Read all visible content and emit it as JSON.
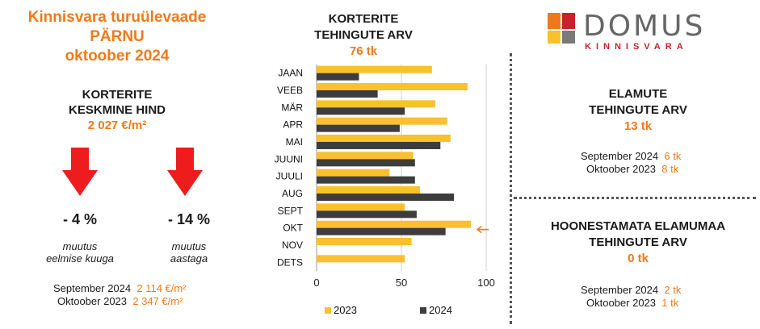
{
  "left": {
    "title_line1": "Kinnisvara turuülevaade",
    "title_line2": "PÄRNU",
    "title_line3": "oktoober 2024",
    "avg_price_label_line1": "KORTERITE",
    "avg_price_label_line2": "KESKMINE HIND",
    "avg_price_value": "2 027 €/m²",
    "change_month": {
      "value": "- 4 %",
      "note_line1": "muutus",
      "note_line2": "eelmise kuuga"
    },
    "change_year": {
      "value": "- 14 %",
      "note_line1": "muutus",
      "note_line2": "aastaga"
    },
    "comparisons": [
      {
        "label": "September 2024",
        "value": "2 114 €/m²"
      },
      {
        "label": "Oktoober 2023",
        "value": "2 347 €/m²"
      }
    ],
    "arrow_color": "#ee1c1c"
  },
  "chart_header": {
    "title_line1": "KORTERITE",
    "title_line2": "TEHINGUTE ARV",
    "total": "76 tk"
  },
  "chart_data": {
    "type": "bar",
    "orientation": "horizontal",
    "categories": [
      "JAAN",
      "VEEB",
      "MÄR",
      "APR",
      "MAI",
      "JUUNI",
      "JUULI",
      "AUG",
      "SEPT",
      "OKT",
      "NOV",
      "DETS"
    ],
    "series": [
      {
        "name": "2023",
        "color": "#fbc02d",
        "values": [
          68,
          89,
          70,
          77,
          79,
          57,
          43,
          61,
          52,
          91,
          56,
          52
        ]
      },
      {
        "name": "2024",
        "color": "#3d3d3d",
        "values": [
          25,
          36,
          52,
          49,
          73,
          58,
          58,
          81,
          59,
          76,
          null,
          null
        ]
      }
    ],
    "xlim": [
      0,
      100
    ],
    "xticks": [
      0,
      50,
      100
    ],
    "grid": true,
    "legend_position": "bottom",
    "highlight_category": "OKT",
    "highlight_color": "#f07a1a"
  },
  "logo": {
    "name": "DOMUS",
    "sub": "KINNISVARA",
    "square_colors": [
      "#f07a1a",
      "#c8232c",
      "#fbc02d",
      "#7a7a7a"
    ]
  },
  "houses": {
    "title_line1": "ELAMUTE",
    "title_line2": "TEHINGUTE ARV",
    "total": "13 tk",
    "comparisons": [
      {
        "label": "September 2024",
        "value": "6 tk"
      },
      {
        "label": "Oktoober 2023",
        "value": "8 tk"
      }
    ]
  },
  "land": {
    "title_line1": "HOONESTAMATA ELAMUMAA",
    "title_line2": "TEHINGUTE ARV",
    "total": "0 tk",
    "comparisons": [
      {
        "label": "September 2024",
        "value": "2 tk"
      },
      {
        "label": "Oktoober 2023",
        "value": "1 tk"
      }
    ]
  }
}
